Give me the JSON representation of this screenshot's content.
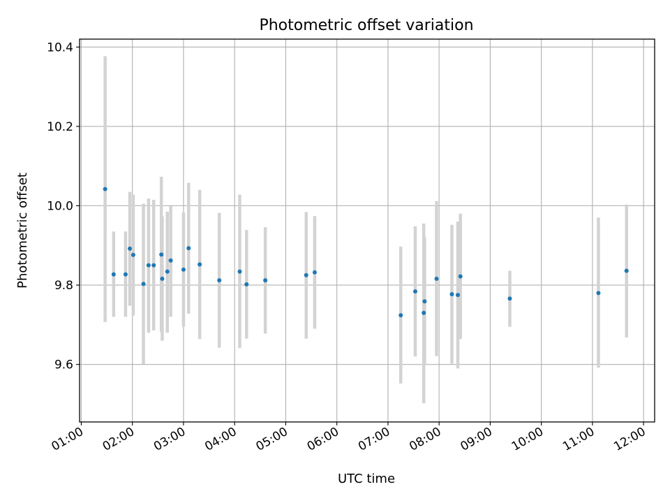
{
  "chart_data": {
    "type": "scatter",
    "title": "Photometric offset variation",
    "xlabel": "UTC time",
    "ylabel": "Photometric offset",
    "grid": true,
    "xlim": [
      "00:58",
      "12:13"
    ],
    "ylim": [
      9.455,
      10.42
    ],
    "xticks": [
      "01:00",
      "02:00",
      "03:00",
      "04:00",
      "05:00",
      "06:00",
      "07:00",
      "08:00",
      "09:00",
      "10:00",
      "11:00",
      "12:00"
    ],
    "yticks": [
      9.6,
      9.8,
      10.0,
      10.2,
      10.4
    ],
    "ytick_labels": [
      "9.6",
      "9.8",
      "10.0",
      "10.2",
      "10.4"
    ],
    "marker_color": "#1f77b4",
    "errorbar_color": "#d3d3d3",
    "points": [
      {
        "t": "01:28",
        "y": 10.042,
        "low": 9.707,
        "high": 10.377
      },
      {
        "t": "01:38",
        "y": 9.827,
        "low": 9.72,
        "high": 9.935
      },
      {
        "t": "01:52",
        "y": 9.827,
        "low": 9.72,
        "high": 9.935
      },
      {
        "t": "01:57",
        "y": 9.892,
        "low": 9.748,
        "high": 10.035
      },
      {
        "t": "02:01",
        "y": 9.876,
        "low": 9.723,
        "high": 10.028
      },
      {
        "t": "02:13",
        "y": 9.803,
        "low": 9.601,
        "high": 10.005
      },
      {
        "t": "02:19",
        "y": 9.85,
        "low": 9.68,
        "high": 10.018
      },
      {
        "t": "02:25",
        "y": 9.85,
        "low": 9.686,
        "high": 10.015
      },
      {
        "t": "02:34",
        "y": 9.877,
        "low": 9.682,
        "high": 10.073
      },
      {
        "t": "02:35",
        "y": 9.816,
        "low": 9.66,
        "high": 9.973
      },
      {
        "t": "02:41",
        "y": 9.834,
        "low": 9.68,
        "high": 9.985
      },
      {
        "t": "02:45",
        "y": 9.862,
        "low": 9.72,
        "high": 9.999
      },
      {
        "t": "03:00",
        "y": 9.839,
        "low": 9.695,
        "high": 9.983
      },
      {
        "t": "03:06",
        "y": 9.893,
        "low": 9.728,
        "high": 10.058
      },
      {
        "t": "03:19",
        "y": 9.852,
        "low": 9.664,
        "high": 10.04
      },
      {
        "t": "03:42",
        "y": 9.812,
        "low": 9.642,
        "high": 9.982
      },
      {
        "t": "04:06",
        "y": 9.834,
        "low": 9.641,
        "high": 10.028
      },
      {
        "t": "04:14",
        "y": 9.802,
        "low": 9.665,
        "high": 9.939
      },
      {
        "t": "04:36",
        "y": 9.812,
        "low": 9.678,
        "high": 9.946
      },
      {
        "t": "05:24",
        "y": 9.825,
        "low": 9.665,
        "high": 9.984
      },
      {
        "t": "05:34",
        "y": 9.832,
        "low": 9.69,
        "high": 9.974
      },
      {
        "t": "07:15",
        "y": 9.724,
        "low": 9.552,
        "high": 9.897
      },
      {
        "t": "07:32",
        "y": 9.784,
        "low": 9.62,
        "high": 9.948
      },
      {
        "t": "07:42",
        "y": 9.73,
        "low": 9.502,
        "high": 9.955
      },
      {
        "t": "07:43",
        "y": 9.759,
        "low": 9.6,
        "high": 9.921
      },
      {
        "t": "07:57",
        "y": 9.816,
        "low": 9.621,
        "high": 10.012
      },
      {
        "t": "08:15",
        "y": 9.777,
        "low": 9.602,
        "high": 9.952
      },
      {
        "t": "08:22",
        "y": 9.775,
        "low": 9.59,
        "high": 9.96
      },
      {
        "t": "08:25",
        "y": 9.822,
        "low": 9.664,
        "high": 9.98
      },
      {
        "t": "09:23",
        "y": 9.766,
        "low": 9.695,
        "high": 9.836
      },
      {
        "t": "11:07",
        "y": 9.78,
        "low": 9.592,
        "high": 9.97
      },
      {
        "t": "11:40",
        "y": 9.836,
        "low": 9.668,
        "high": 10.003
      }
    ]
  }
}
